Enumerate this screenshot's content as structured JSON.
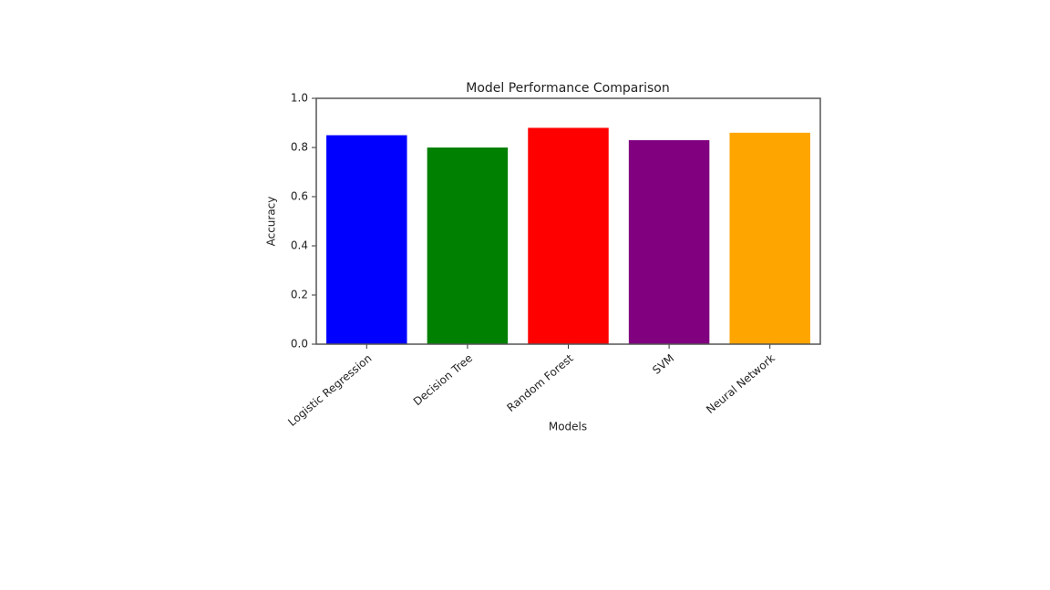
{
  "chart_data": {
    "type": "bar",
    "title": "Model Performance Comparison",
    "x_label": "Models",
    "y_label": "Accuracy",
    "categories": [
      "Logistic Regression",
      "Decision Tree",
      "Random Forest",
      "SVM",
      "Neural Network"
    ],
    "values": [
      0.85,
      0.8,
      0.88,
      0.83,
      0.86
    ],
    "colors": [
      "#0000ff",
      "#008000",
      "#ff0000",
      "#800080",
      "#ffa500"
    ],
    "ylim": [
      0,
      1
    ],
    "yticks": [
      {
        "value": 0,
        "label": "0.0"
      },
      0.2,
      0.4,
      0.6,
      0.8,
      {
        "value": 1,
        "label": "1.0"
      }
    ],
    "grid": false
  }
}
